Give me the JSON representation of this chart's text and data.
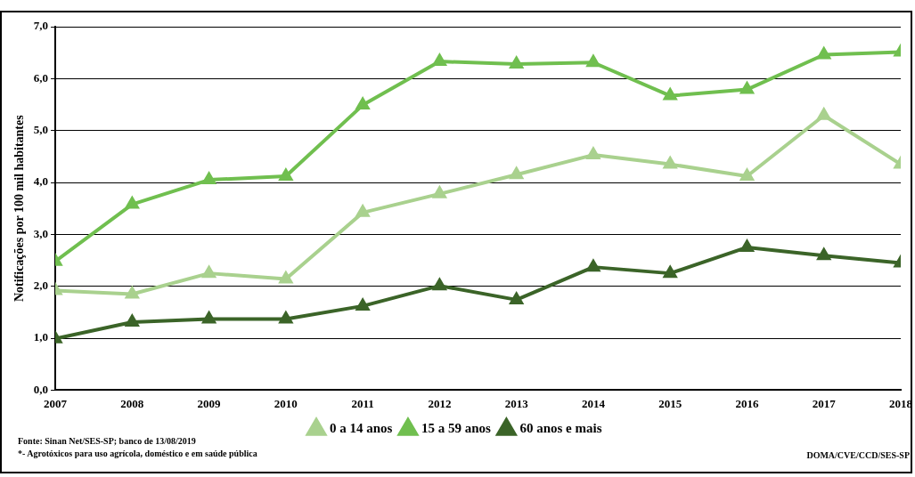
{
  "chart_data": {
    "type": "line",
    "ylabel": "Notificações por 100 mil habitantes",
    "x": [
      2007,
      2008,
      2009,
      2010,
      2011,
      2012,
      2013,
      2014,
      2015,
      2016,
      2017,
      2018
    ],
    "xlim": [
      2007,
      2018
    ],
    "xticks": [
      2007,
      2008,
      2009,
      2010,
      2011,
      2012,
      2013,
      2014,
      2015,
      2016,
      2017,
      2018
    ],
    "ylim": [
      0,
      7
    ],
    "yticks": [
      {
        "value": 0,
        "label": "0,0"
      },
      {
        "value": 1,
        "label": "1,0"
      },
      {
        "value": 2,
        "label": "2,0"
      },
      {
        "value": 3,
        "label": "3,0"
      },
      {
        "value": 4,
        "label": "4,0"
      },
      {
        "value": 5,
        "label": "5,0"
      },
      {
        "value": 6,
        "label": "6,0"
      },
      {
        "value": 7,
        "label": "7,0"
      }
    ],
    "grid": "y",
    "legend": "bottom",
    "marker": "triangle",
    "line_style": "solid",
    "series": [
      {
        "name": "0 a 14 anos",
        "color": "#a9d18e",
        "values": [
          1.92,
          1.85,
          2.25,
          2.14,
          3.42,
          3.78,
          4.15,
          4.53,
          4.35,
          4.12,
          5.29,
          4.35
        ]
      },
      {
        "name": "15 a 59 anos",
        "color": "#70bf4f",
        "values": [
          2.48,
          3.58,
          4.05,
          4.12,
          5.49,
          6.33,
          6.28,
          6.31,
          5.67,
          5.79,
          6.46,
          6.51
        ]
      },
      {
        "name": "60 anos e mais",
        "color": "#3b6428",
        "values": [
          0.99,
          1.31,
          1.37,
          1.37,
          1.62,
          2.01,
          1.74,
          2.37,
          2.25,
          2.75,
          2.59,
          2.45
        ]
      }
    ],
    "annotations": [
      "Fonte: Sinan Net/SES-SP; banco de 13/08/2019",
      "*- Agrotóxicos para uso agrícola, doméstico e em saúde pública",
      "DOMA/CVE/CCD/SES-SP"
    ]
  }
}
